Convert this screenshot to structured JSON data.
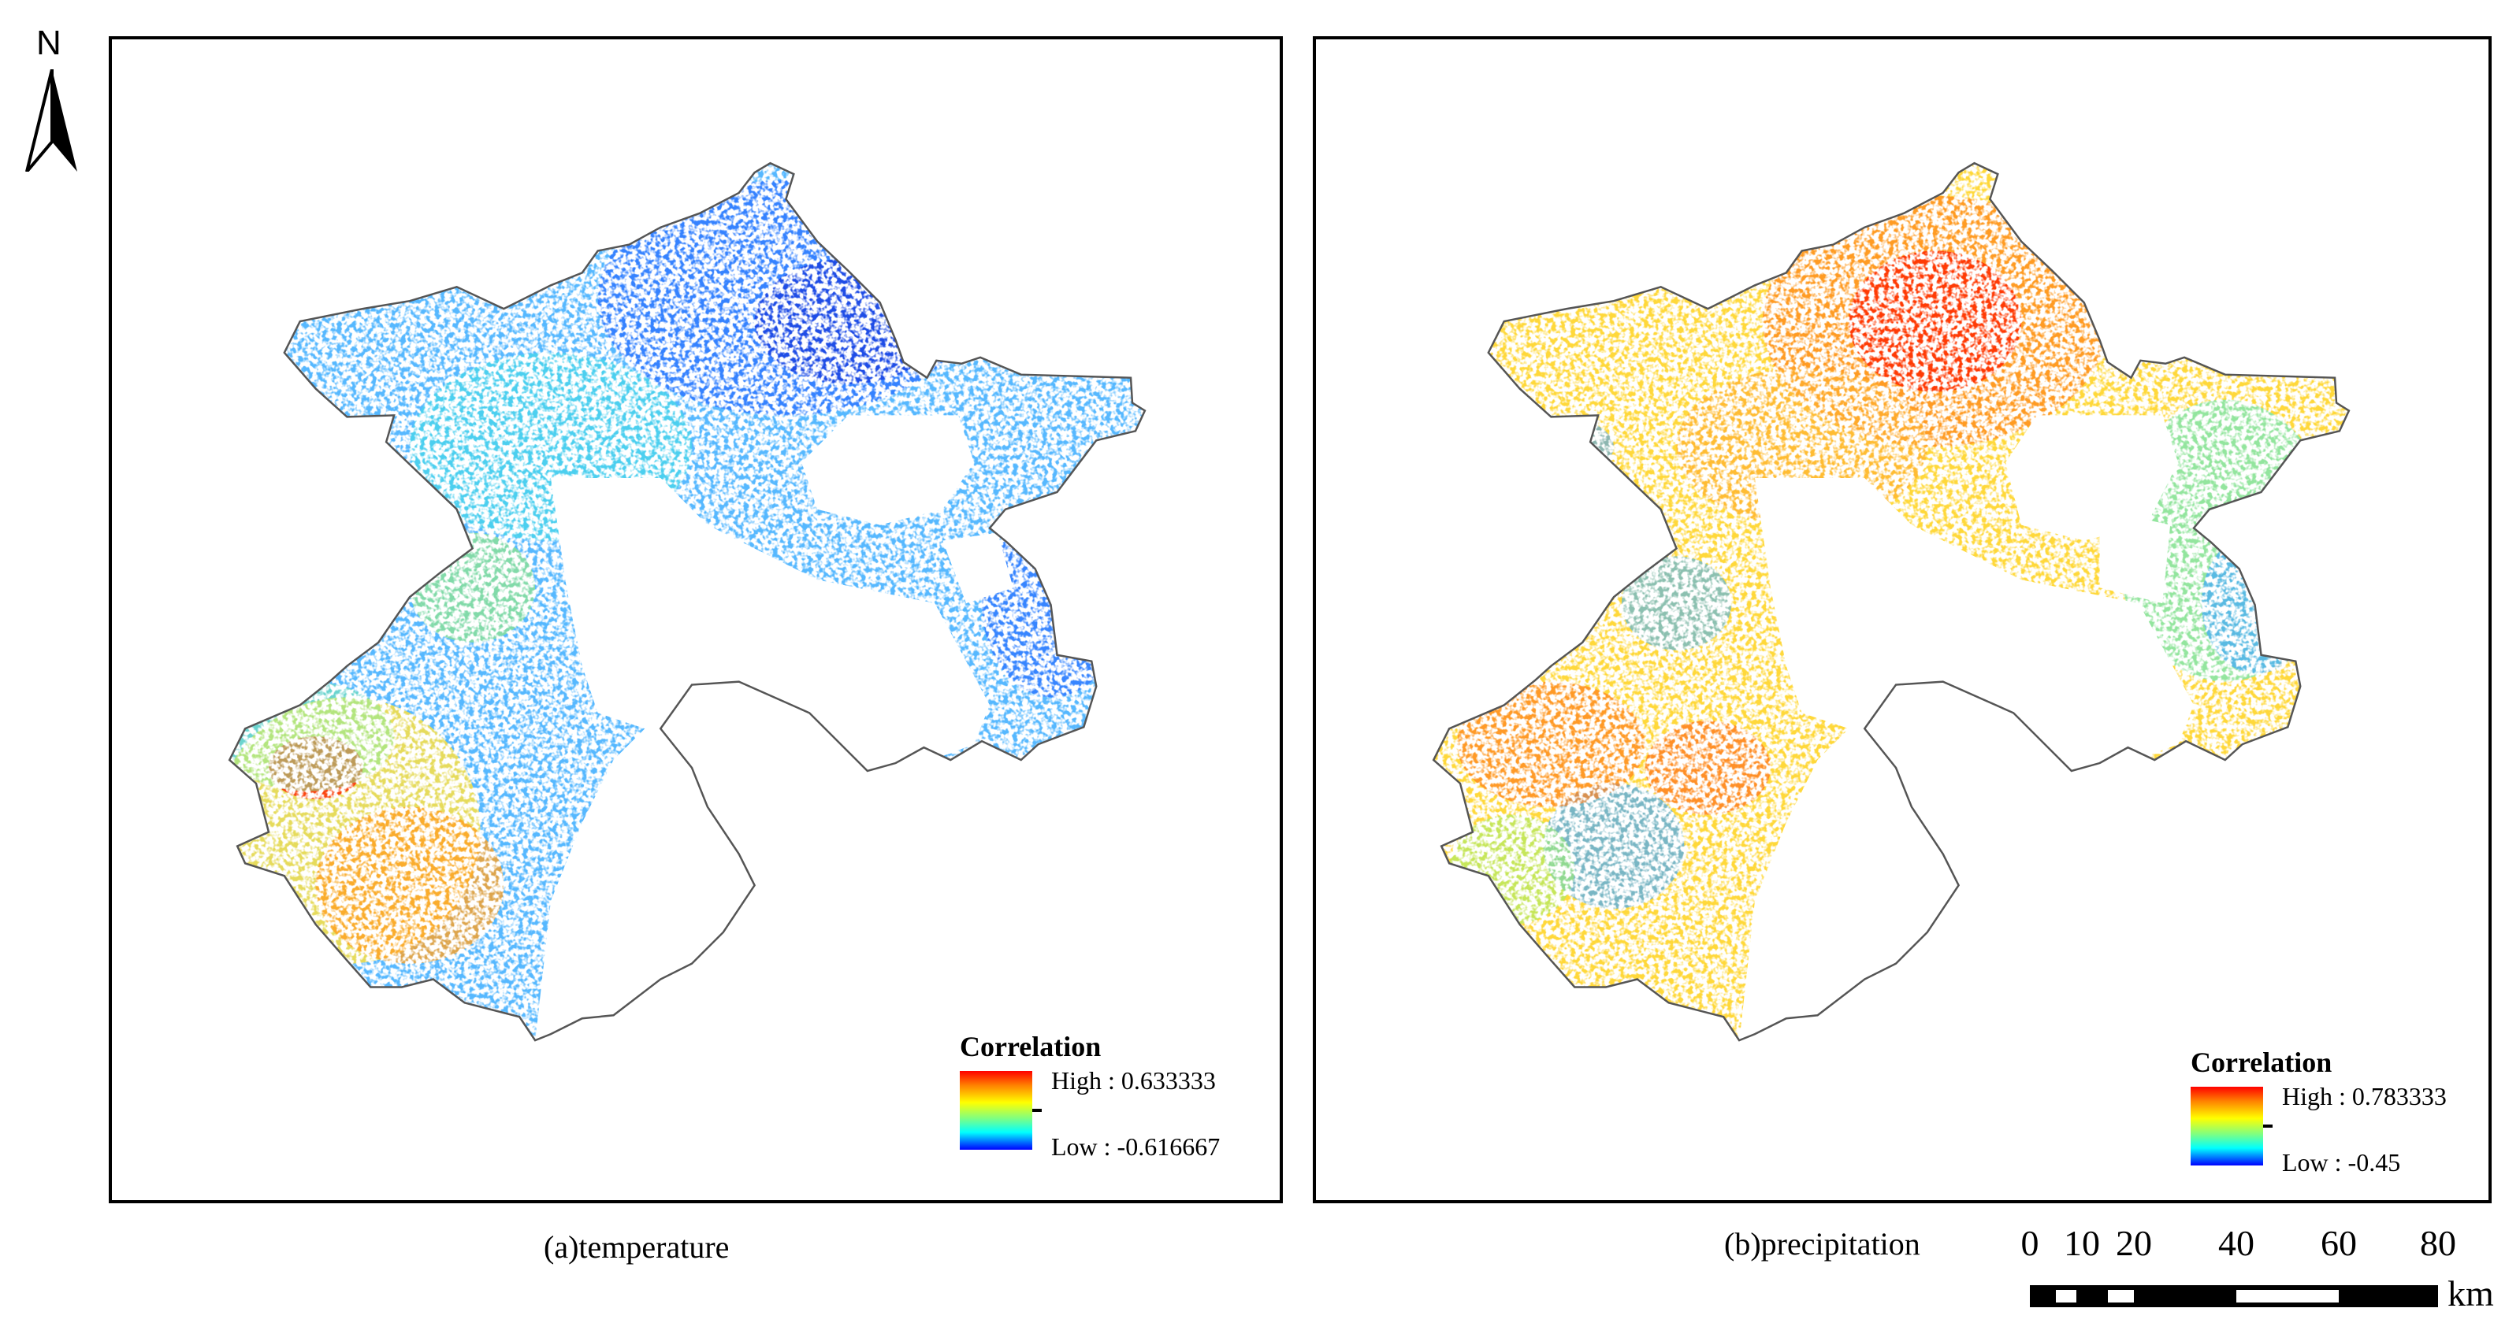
{
  "north_arrow": {
    "label": "N"
  },
  "panels": [
    {
      "id": "a",
      "caption": "(a)temperature",
      "legend": {
        "title": "Correlation",
        "high": "High : 0.633333",
        "low": "Low : -0.616667"
      },
      "dominant_colors": [
        "#4fa8ff",
        "#2060ff",
        "#40e0f0",
        "#ffe040",
        "#ff8000",
        "#ff2000"
      ]
    },
    {
      "id": "b",
      "caption": "(b)precipitation",
      "legend": {
        "title": "Correlation",
        "high": "High : 0.783333",
        "low": "Low : -0.45"
      },
      "dominant_colors": [
        "#ffd020",
        "#ff9000",
        "#ff3000",
        "#a0f060",
        "#40d0ff",
        "#2060ff"
      ]
    }
  ],
  "scale_bar": {
    "ticks": [
      "0",
      "10",
      "20",
      "40",
      "60",
      "80"
    ],
    "unit": "km"
  },
  "colors": {
    "ramp_high": "#ff0000",
    "ramp_mid": "#ffff00",
    "ramp_low": "#0000ff",
    "boundary": "#555555"
  }
}
